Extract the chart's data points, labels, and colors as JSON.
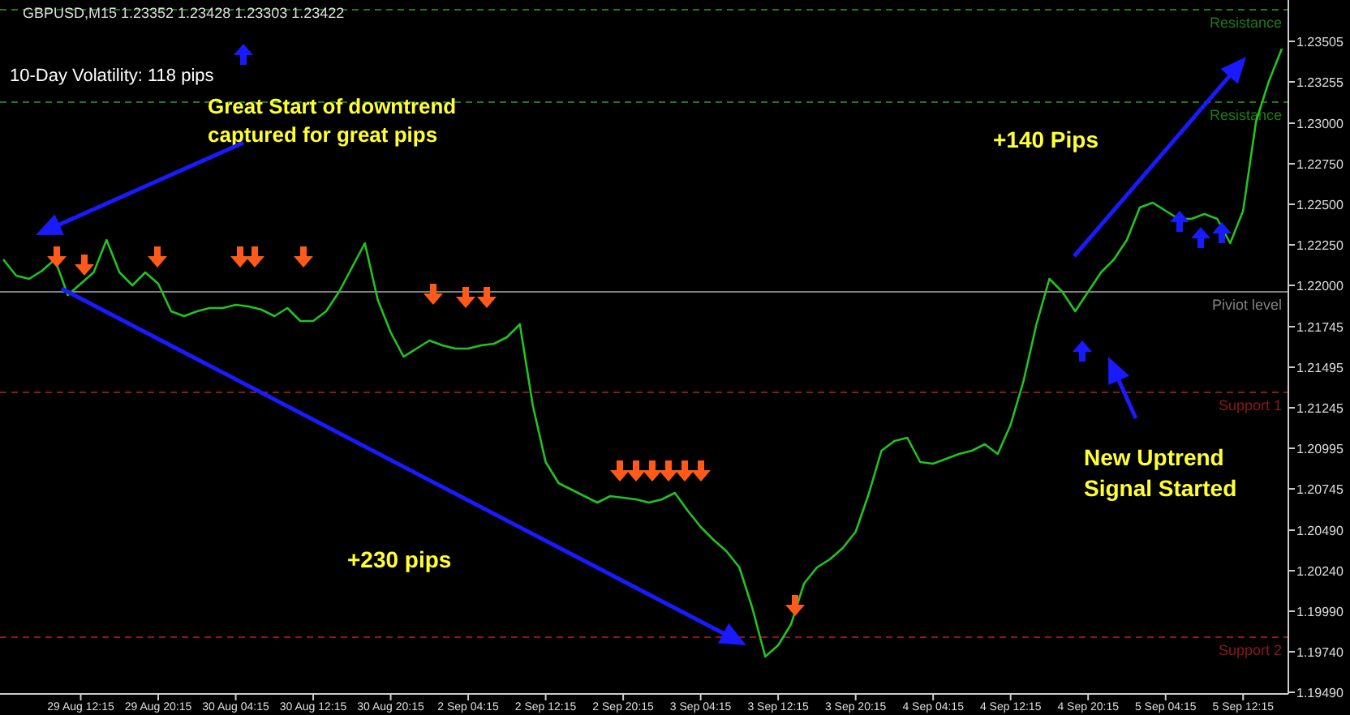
{
  "chart_data": {
    "type": "line",
    "title": "GBPUSD,M15  1.23352 1.23428 1.23303 1.23422",
    "annotations": [
      "10-Day Volatility: 118 pips",
      "Great Start of downtrend captured for great pips",
      "+230 pips",
      "+140 Pips",
      "New Uptrend Signal Started"
    ],
    "categories": [
      null,
      null,
      null,
      null,
      null,
      null,
      "29 Aug 12:15",
      null,
      null,
      null,
      null,
      null,
      "29 Aug 20:15",
      null,
      null,
      null,
      null,
      null,
      "30 Aug 04:15",
      null,
      null,
      null,
      null,
      null,
      "30 Aug 12:15",
      null,
      null,
      null,
      null,
      null,
      "30 Aug 20:15",
      null,
      null,
      null,
      null,
      null,
      "2 Sep 04:15",
      null,
      null,
      null,
      null,
      null,
      "2 Sep 12:15",
      null,
      null,
      null,
      null,
      null,
      "2 Sep 20:15",
      null,
      null,
      null,
      null,
      null,
      "3 Sep 04:15",
      null,
      null,
      null,
      null,
      null,
      "3 Sep 12:15",
      null,
      null,
      null,
      null,
      null,
      "3 Sep 20:15",
      null,
      null,
      null,
      null,
      null,
      "4 Sep 04:15",
      null,
      null,
      null,
      null,
      null,
      "4 Sep 12:15",
      null,
      null,
      null,
      null,
      null,
      "4 Sep 20:15",
      null,
      null,
      null,
      null,
      null,
      "5 Sep 04:15",
      null,
      null,
      null,
      null,
      null,
      "5 Sep 12:15",
      null,
      null,
      null
    ],
    "series": [
      {
        "color": "#22c322",
        "values": [
          1.2216,
          1.2206,
          1.2204,
          1.2209,
          1.2216,
          1.2194,
          1.2201,
          1.2208,
          1.2228,
          1.2208,
          1.22,
          1.2208,
          1.2201,
          1.2184,
          1.2181,
          1.2184,
          1.2186,
          1.2186,
          1.2188,
          1.2187,
          1.2185,
          1.2181,
          1.2186,
          1.2178,
          1.2178,
          1.2184,
          1.2196,
          1.2211,
          1.2226,
          1.2191,
          1.2171,
          1.2156,
          1.2161,
          1.2166,
          1.2163,
          1.2161,
          1.2161,
          1.2163,
          1.2164,
          1.2168,
          1.2176,
          1.2126,
          1.2091,
          1.2078,
          1.2074,
          1.207,
          1.2066,
          1.207,
          1.2069,
          1.2068,
          1.2066,
          1.2068,
          1.2072,
          1.2061,
          1.2051,
          1.2043,
          1.2036,
          1.2026,
          1.2001,
          1.1971,
          1.1978,
          1.1991,
          1.2016,
          1.2026,
          1.2031,
          1.2038,
          1.2048,
          1.2071,
          1.2098,
          1.2104,
          1.2106,
          1.2091,
          1.209,
          1.2093,
          1.2096,
          1.2098,
          1.2102,
          1.2096,
          1.2114,
          1.2141,
          1.2176,
          1.2204,
          1.2196,
          1.2184,
          1.2196,
          1.2208,
          1.2216,
          1.2228,
          1.2248,
          1.2251,
          1.2246,
          1.2241,
          1.2241,
          1.2244,
          1.2241,
          1.2226,
          1.2246,
          1.2301,
          1.2326,
          1.2346
        ]
      }
    ],
    "ylim": [
      1.1948,
      1.2376
    ],
    "yticks": [
      1.23505,
      {
        "value": 1.23255,
        "label": "1.23255"
      },
      {
        "value": 1.23,
        "label": "1.23000"
      },
      {
        "value": 1.2275,
        "label": "1.22750"
      },
      {
        "value": 1.225,
        "label": "1.22500"
      },
      {
        "value": 1.2225,
        "label": "1.22250"
      },
      {
        "value": 1.22,
        "label": "1.22000"
      },
      1.21745,
      1.21495,
      1.21245,
      1.20995,
      1.20745,
      {
        "value": 1.2049,
        "label": "1.20490"
      },
      {
        "value": 1.2024,
        "label": "1.20240"
      },
      {
        "value": 1.1999,
        "label": "1.19990"
      },
      {
        "value": 1.1974,
        "label": "1.19740"
      },
      {
        "value": 1.1949,
        "label": "1.19490"
      }
    ],
    "ref_lines": [
      {
        "axis": "y",
        "value": 1.237,
        "label": "Resistance",
        "color": "#1f7a1f",
        "line_style": "dashed"
      },
      {
        "axis": "y",
        "value": 1.2313,
        "label": "Resistance",
        "color": "#1f7a1f",
        "line_style": "dashed"
      },
      {
        "axis": "y",
        "value": 1.2196,
        "label": "Piviot level",
        "color": "#808080",
        "line_style": "solid"
      },
      {
        "axis": "y",
        "value": 1.2134,
        "label": "Support 1",
        "color": "#8b1a1a",
        "line_style": "dashed"
      },
      {
        "axis": "y",
        "value": 1.1983,
        "label": "Support 2",
        "color": "#8b1a1a",
        "line_style": "dashed"
      }
    ],
    "grid": false,
    "marker": "none",
    "line_style": "solid"
  }
}
